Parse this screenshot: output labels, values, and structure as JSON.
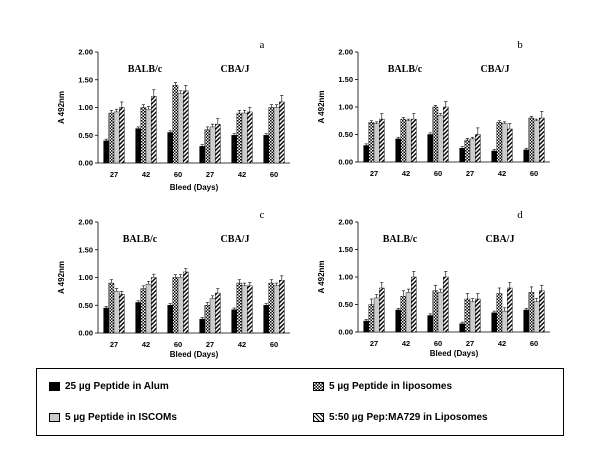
{
  "legend": {
    "items": [
      {
        "label": "25 µg Peptide in Alum",
        "pattern": "solid-black"
      },
      {
        "label": "5 µg Peptide in liposomes",
        "pattern": "checker"
      },
      {
        "label": "5 µg Peptide in ISCOMs",
        "pattern": "light-gray"
      },
      {
        "label": "5:50 µg Pep:MA729 in Liposomes",
        "pattern": "diagonal"
      }
    ]
  },
  "chart_data": [
    {
      "type": "bar",
      "panel": "a",
      "ylabel": "A 492nm",
      "xlabel": "Bleed (Days)",
      "ylim": [
        0,
        2
      ],
      "yticks": [
        "0.00",
        "0.50",
        "1.00",
        "1.50",
        "2.00"
      ],
      "group_labels": [
        "BALB/c",
        "CBA/J"
      ],
      "categories": [
        "27",
        "42",
        "60",
        "27",
        "42",
        "60"
      ],
      "series": [
        {
          "values": [
            0.4,
            0.62,
            0.55,
            0.3,
            0.5,
            0.5
          ],
          "errors": [
            0.03,
            0.03,
            0.03,
            0.03,
            0.03,
            0.03
          ]
        },
        {
          "values": [
            0.9,
            1.0,
            1.4,
            0.6,
            0.9,
            1.0
          ],
          "errors": [
            0.05,
            0.05,
            0.05,
            0.05,
            0.05,
            0.05
          ]
        },
        {
          "values": [
            0.92,
            0.97,
            1.25,
            0.65,
            0.9,
            1.0
          ],
          "errors": [
            0.05,
            0.05,
            0.05,
            0.05,
            0.05,
            0.05
          ]
        },
        {
          "values": [
            1.0,
            1.2,
            1.3,
            0.7,
            0.92,
            1.1
          ],
          "errors": [
            0.1,
            0.12,
            0.1,
            0.1,
            0.08,
            0.12
          ]
        }
      ]
    },
    {
      "type": "bar",
      "panel": "b",
      "ylabel": "A 492nm",
      "xlabel": "",
      "ylim": [
        0,
        2
      ],
      "yticks": [
        "0.00",
        "0.50",
        "1.00",
        "1.50",
        "2.00"
      ],
      "group_labels": [
        "BALB/c",
        "CBA/J"
      ],
      "categories": [
        "27",
        "42",
        "60",
        "27",
        "42",
        "60"
      ],
      "series": [
        {
          "values": [
            0.3,
            0.42,
            0.5,
            0.25,
            0.2,
            0.22
          ],
          "errors": [
            0.03,
            0.03,
            0.03,
            0.03,
            0.03,
            0.03
          ]
        },
        {
          "values": [
            0.72,
            0.78,
            1.0,
            0.4,
            0.72,
            0.8
          ],
          "errors": [
            0.03,
            0.03,
            0.03,
            0.03,
            0.03,
            0.03
          ]
        },
        {
          "values": [
            0.7,
            0.75,
            0.85,
            0.42,
            0.7,
            0.75
          ],
          "errors": [
            0.03,
            0.03,
            0.03,
            0.03,
            0.03,
            0.03
          ]
        },
        {
          "values": [
            0.78,
            0.78,
            1.0,
            0.5,
            0.6,
            0.8
          ],
          "errors": [
            0.1,
            0.1,
            0.1,
            0.12,
            0.1,
            0.12
          ]
        }
      ]
    },
    {
      "type": "bar",
      "panel": "c",
      "ylabel": "A 492nm",
      "xlabel": "Bleed (Days)",
      "ylim": [
        0,
        2
      ],
      "yticks": [
        "0.00",
        "0.50",
        "1.00",
        "1.50",
        "2.00"
      ],
      "group_labels": [
        "BALB/c",
        "CBA/J"
      ],
      "categories": [
        "27",
        "42",
        "60",
        "27",
        "42",
        "60"
      ],
      "series": [
        {
          "values": [
            0.45,
            0.55,
            0.5,
            0.25,
            0.42,
            0.5
          ],
          "errors": [
            0.03,
            0.03,
            0.03,
            0.03,
            0.03,
            0.03
          ]
        },
        {
          "values": [
            0.9,
            0.8,
            1.0,
            0.5,
            0.9,
            0.9
          ],
          "errors": [
            0.06,
            0.05,
            0.05,
            0.05,
            0.06,
            0.06
          ]
        },
        {
          "values": [
            0.75,
            0.88,
            1.0,
            0.62,
            0.85,
            0.85
          ],
          "errors": [
            0.05,
            0.05,
            0.05,
            0.05,
            0.05,
            0.05
          ]
        },
        {
          "values": [
            0.7,
            1.0,
            1.1,
            0.72,
            0.85,
            0.95
          ],
          "errors": [
            0.05,
            0.06,
            0.06,
            0.08,
            0.06,
            0.08
          ]
        }
      ]
    },
    {
      "type": "bar",
      "panel": "d",
      "ylabel": "A 492nm",
      "xlabel": "Bleed (Days)",
      "ylim": [
        0,
        2
      ],
      "yticks": [
        "0.00",
        "0.50",
        "1.00",
        "1.50",
        "2.00"
      ],
      "group_labels": [
        "BALB/c",
        "CBA/J"
      ],
      "categories": [
        "27",
        "42",
        "60",
        "27",
        "42",
        "60"
      ],
      "series": [
        {
          "values": [
            0.2,
            0.4,
            0.3,
            0.15,
            0.35,
            0.4
          ],
          "errors": [
            0.03,
            0.03,
            0.03,
            0.03,
            0.03,
            0.03
          ]
        },
        {
          "values": [
            0.5,
            0.65,
            0.75,
            0.6,
            0.7,
            0.72
          ],
          "errors": [
            0.1,
            0.1,
            0.1,
            0.1,
            0.1,
            0.1
          ]
        },
        {
          "values": [
            0.62,
            0.72,
            0.72,
            0.55,
            0.38,
            0.55
          ],
          "errors": [
            0.06,
            0.06,
            0.06,
            0.06,
            0.06,
            0.06
          ]
        },
        {
          "values": [
            0.8,
            1.0,
            1.0,
            0.6,
            0.8,
            0.75
          ],
          "errors": [
            0.1,
            0.1,
            0.1,
            0.1,
            0.1,
            0.1
          ]
        }
      ]
    }
  ]
}
